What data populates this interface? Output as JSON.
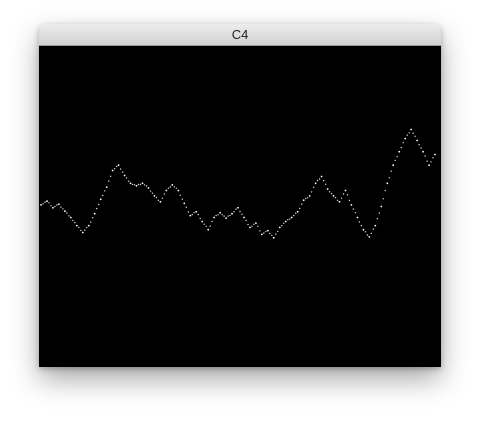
{
  "window": {
    "title": "C4",
    "background_color": "#000000",
    "titlebar_colors": [
      "#ececec",
      "#d2d2d2"
    ]
  },
  "chart_data": {
    "type": "scatter",
    "title": "",
    "xlabel": "",
    "ylabel": "",
    "grid": false,
    "point_color": "#ffffff",
    "xlim": [
      0,
      100
    ],
    "ylim": [
      0,
      100
    ],
    "series": [
      {
        "values": [
          [
            0.0,
            50.5
          ],
          [
            1.5,
            51.7
          ],
          [
            3.0,
            49.6
          ],
          [
            4.5,
            50.7
          ],
          [
            6.0,
            48.5
          ],
          [
            7.5,
            46.5
          ],
          [
            9.0,
            43.9
          ],
          [
            10.5,
            41.7
          ],
          [
            12.0,
            43.9
          ],
          [
            13.5,
            47.7
          ],
          [
            15.0,
            52.3
          ],
          [
            16.5,
            56.2
          ],
          [
            18.0,
            61.5
          ],
          [
            19.5,
            63.2
          ],
          [
            21.0,
            59.9
          ],
          [
            22.5,
            57.4
          ],
          [
            24.0,
            56.6
          ],
          [
            25.5,
            57.4
          ],
          [
            27.0,
            55.9
          ],
          [
            28.5,
            53.4
          ],
          [
            30.0,
            51.5
          ],
          [
            31.5,
            55.1
          ],
          [
            33.0,
            56.9
          ],
          [
            34.5,
            55.1
          ],
          [
            36.0,
            51.0
          ],
          [
            37.5,
            47.1
          ],
          [
            39.0,
            48.3
          ],
          [
            40.5,
            45.2
          ],
          [
            42.0,
            42.6
          ],
          [
            43.5,
            46.5
          ],
          [
            45.0,
            48.0
          ],
          [
            46.5,
            46.3
          ],
          [
            48.0,
            47.7
          ],
          [
            49.5,
            49.6
          ],
          [
            51.0,
            46.5
          ],
          [
            52.5,
            43.3
          ],
          [
            54.0,
            44.7
          ],
          [
            55.5,
            41.1
          ],
          [
            57.0,
            42.3
          ],
          [
            58.5,
            40.0
          ],
          [
            60.0,
            43.3
          ],
          [
            61.5,
            45.2
          ],
          [
            63.0,
            46.5
          ],
          [
            64.5,
            48.3
          ],
          [
            66.0,
            52.0
          ],
          [
            67.5,
            53.4
          ],
          [
            69.0,
            57.4
          ],
          [
            70.5,
            59.6
          ],
          [
            72.0,
            55.6
          ],
          [
            73.5,
            53.4
          ],
          [
            75.0,
            51.5
          ],
          [
            76.5,
            55.1
          ],
          [
            78.0,
            50.5
          ],
          [
            79.5,
            46.5
          ],
          [
            81.0,
            42.6
          ],
          [
            82.5,
            40.3
          ],
          [
            84.0,
            43.9
          ],
          [
            85.5,
            50.0
          ],
          [
            87.0,
            57.4
          ],
          [
            88.5,
            63.2
          ],
          [
            90.0,
            67.5
          ],
          [
            91.5,
            71.7
          ],
          [
            93.0,
            74.6
          ],
          [
            94.5,
            71.1
          ],
          [
            96.0,
            67.5
          ],
          [
            97.5,
            63.2
          ],
          [
            99.0,
            66.6
          ]
        ]
      }
    ]
  }
}
